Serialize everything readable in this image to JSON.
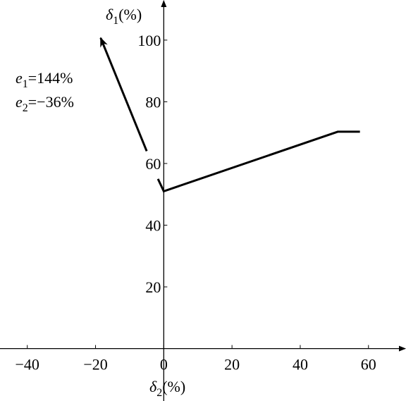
{
  "chart_data": {
    "type": "line",
    "x_label": {
      "symbol": "δ",
      "subscript": "2",
      "unit": "(%)"
    },
    "y_label": {
      "symbol": "δ",
      "subscript": "1",
      "unit": "(%)"
    },
    "annotations": [
      {
        "symbol": "e",
        "subscript": "1",
        "text": "=144%"
      },
      {
        "symbol": "e",
        "subscript": "2",
        "text": "=−36%"
      }
    ],
    "series": [
      {
        "color": "#000000",
        "x": [
          -1.7,
          0,
          51,
          57.5
        ],
        "values": [
          55,
          51,
          70.3,
          70.3
        ]
      },
      {
        "color": "#000000",
        "arrow": true,
        "x": [
          -5,
          -18.5
        ],
        "values": [
          64,
          100.7
        ]
      }
    ],
    "xlim": [
      -48,
      71
    ],
    "ylim": [
      -17,
      113
    ],
    "xticks": [
      {
        "value": -40,
        "label": "−40"
      },
      {
        "value": -20,
        "label": "−20"
      },
      0,
      20,
      40,
      60
    ],
    "yticks": [
      20,
      40,
      60,
      80,
      100
    ],
    "grid": false
  }
}
